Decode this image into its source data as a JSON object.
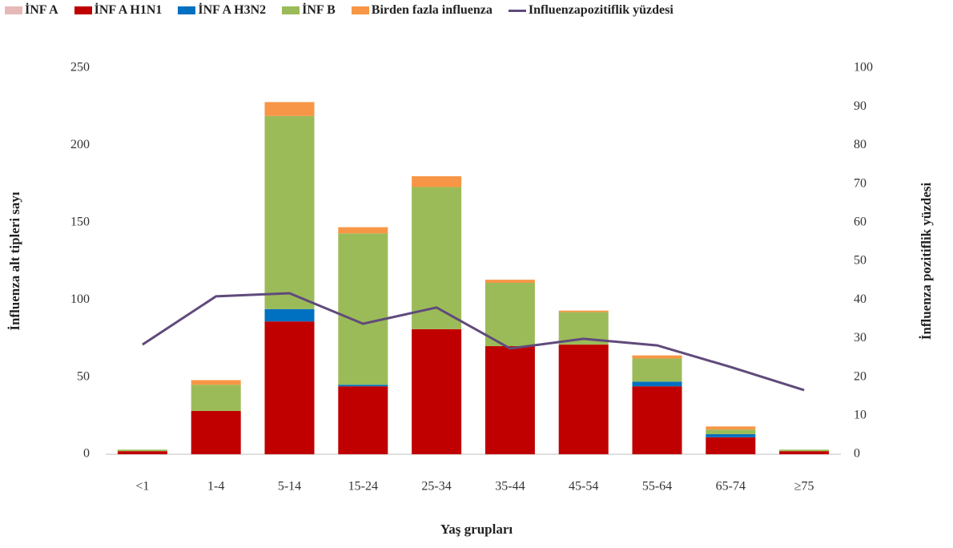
{
  "chart_data": {
    "type": "bar",
    "x_label": "Yaş grupları",
    "y_label": "İnfluenza alt tipleri sayı",
    "y2_label": "İnfluenza pozitiflik yüzdesi",
    "categories": [
      "<1",
      "1-4",
      "5-14",
      "15-24",
      "25-34",
      "35-44",
      "45-54",
      "55-64",
      "65-74",
      "≥75"
    ],
    "stacked": true,
    "grid": false,
    "legend": "top",
    "ylim": [
      0,
      250
    ],
    "yticks": [
      0,
      50,
      100,
      150,
      200,
      250
    ],
    "y2lim": [
      0,
      100
    ],
    "y2ticks": [
      0,
      10,
      20,
      30,
      40,
      50,
      60,
      70,
      80,
      90,
      100
    ],
    "series": [
      {
        "name": "İNF A",
        "color": "#e6b9b8",
        "values": [
          0,
          0,
          0,
          0,
          0,
          0,
          0,
          0,
          0,
          0
        ]
      },
      {
        "name": "İNF A H1N1",
        "color": "#c00000",
        "values": [
          2,
          28,
          86,
          44,
          81,
          70,
          71,
          44,
          11,
          2
        ]
      },
      {
        "name": "İNF A H3N2",
        "color": "#0070c0",
        "values": [
          0,
          0,
          8,
          1,
          0,
          0,
          0,
          3,
          2,
          0
        ]
      },
      {
        "name": "İNF B",
        "color": "#9bbb59",
        "values": [
          1,
          17,
          125,
          98,
          92,
          41,
          21,
          15,
          3,
          1
        ]
      },
      {
        "name": "Birden fazla influenza",
        "color": "#f79646",
        "values": [
          0,
          3,
          9,
          4,
          7,
          2,
          1,
          2,
          2,
          0
        ]
      },
      {
        "name": "Influenzapozitiflik yüzdesi",
        "color": "#604a7b",
        "type": "line",
        "axis": "y2",
        "values": [
          28.4,
          40.9,
          41.7,
          33.8,
          38,
          27.4,
          29.9,
          28.2,
          22.6,
          16.6
        ]
      }
    ]
  }
}
